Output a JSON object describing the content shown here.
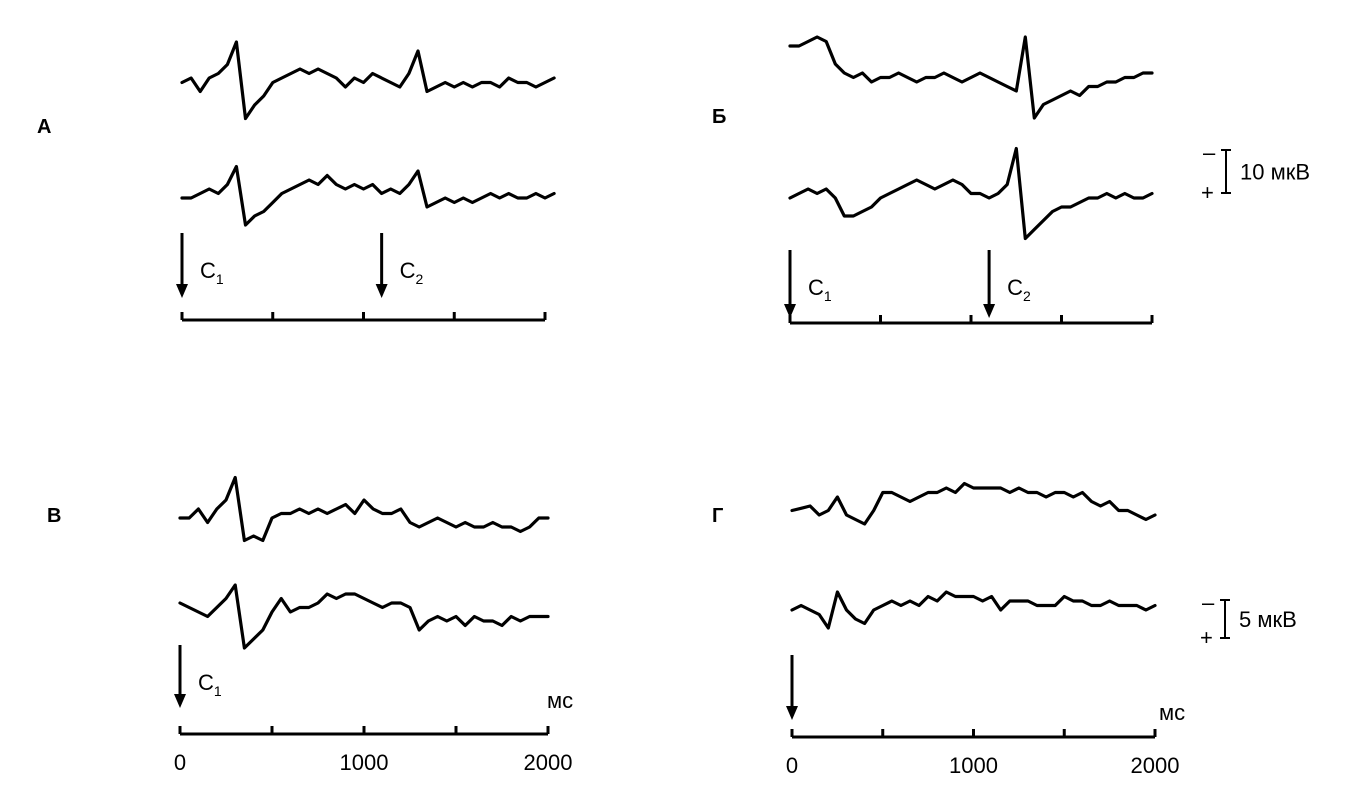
{
  "chart_data": [
    {
      "type": "line",
      "panel_label": "А",
      "x_unit": "",
      "x": [
        0,
        50,
        100,
        150,
        200,
        250,
        300,
        350,
        400,
        450,
        500,
        550,
        600,
        650,
        700,
        750,
        800,
        850,
        900,
        950,
        1000,
        1050,
        1100,
        1150,
        1200,
        1250,
        1300,
        1350,
        1400,
        1450,
        1500,
        1550,
        1600,
        1650,
        1700,
        1750,
        1800,
        1850,
        1900,
        1950,
        2000,
        2050
      ],
      "series": [
        {
          "values": [
            -1,
            0,
            -3,
            0,
            1,
            3,
            8,
            -9,
            -6,
            -4,
            -1,
            0,
            1,
            2,
            1,
            2,
            1,
            0,
            -2,
            0,
            -1,
            1,
            0,
            -1,
            -2,
            1,
            6,
            -3,
            -2,
            -1,
            -2,
            -1,
            -2,
            -1,
            -1,
            -2,
            0,
            -1,
            -1,
            -2,
            -1,
            0
          ]
        },
        {
          "values": [
            0,
            0,
            1,
            2,
            1,
            3,
            7,
            -6,
            -4,
            -3,
            -1,
            1,
            2,
            3,
            4,
            3,
            5,
            3,
            2,
            3,
            2,
            3,
            1,
            2,
            1,
            3,
            6,
            -2,
            -1,
            0,
            -1,
            0,
            -1,
            0,
            1,
            0,
            1,
            0,
            0,
            1,
            0,
            1
          ]
        }
      ],
      "markers": [
        {
          "label": "С",
          "sub": "1",
          "x": 0
        },
        {
          "label": "С",
          "sub": "2",
          "x": 1100
        }
      ],
      "xlim": [
        0,
        2000
      ],
      "ticks": [
        0,
        500,
        1000,
        1500,
        2000
      ],
      "tick_labels": []
    },
    {
      "type": "line",
      "panel_label": "Б",
      "x_unit": "",
      "x": [
        0,
        50,
        100,
        150,
        200,
        250,
        300,
        350,
        400,
        450,
        500,
        550,
        600,
        650,
        700,
        750,
        800,
        850,
        900,
        950,
        1000,
        1050,
        1100,
        1150,
        1200,
        1250,
        1300,
        1350,
        1400,
        1450,
        1500,
        1550,
        1600,
        1650,
        1700,
        1750,
        1800,
        1850,
        1900,
        1950,
        2000
      ],
      "series": [
        {
          "values": [
            8,
            8,
            9,
            10,
            9,
            4,
            2,
            1,
            2,
            0,
            1,
            1,
            2,
            1,
            0,
            1,
            1,
            2,
            1,
            0,
            1,
            2,
            1,
            0,
            -1,
            -2,
            10,
            -8,
            -5,
            -4,
            -3,
            -2,
            -3,
            -1,
            -1,
            0,
            0,
            1,
            1,
            2,
            2
          ]
        },
        {
          "values": [
            0,
            1,
            2,
            1,
            2,
            0,
            -4,
            -4,
            -3,
            -2,
            0,
            1,
            2,
            3,
            4,
            3,
            2,
            3,
            4,
            3,
            1,
            1,
            0,
            1,
            3,
            11,
            -9,
            -7,
            -5,
            -3,
            -2,
            -2,
            -1,
            0,
            0,
            1,
            0,
            1,
            0,
            0,
            1
          ]
        }
      ],
      "markers": [
        {
          "label": "С",
          "sub": "1",
          "x": 0
        },
        {
          "label": "С",
          "sub": "2",
          "x": 1100
        }
      ],
      "xlim": [
        0,
        2000
      ],
      "ticks": [
        0,
        500,
        1000,
        1500,
        2000
      ],
      "tick_labels": [],
      "scale_bar": {
        "label": "10 мкВ",
        "neg": "–",
        "pos": "+"
      }
    },
    {
      "type": "line",
      "panel_label": "В",
      "x_unit": "мс",
      "x": [
        0,
        50,
        100,
        150,
        200,
        250,
        300,
        350,
        400,
        450,
        500,
        550,
        600,
        650,
        700,
        750,
        800,
        850,
        900,
        950,
        1000,
        1050,
        1100,
        1150,
        1200,
        1250,
        1300,
        1350,
        1400,
        1450,
        1500,
        1550,
        1600,
        1650,
        1700,
        1750,
        1800,
        1850,
        1900,
        1950,
        2000
      ],
      "series": [
        {
          "values": [
            0,
            0,
            2,
            -1,
            2,
            4,
            9,
            -5,
            -4,
            -5,
            0,
            1,
            1,
            2,
            1,
            2,
            1,
            2,
            3,
            1,
            4,
            2,
            1,
            1,
            2,
            -1,
            -2,
            -1,
            0,
            -1,
            -2,
            -1,
            -2,
            -2,
            -1,
            -2,
            -2,
            -3,
            -2,
            0,
            0
          ]
        },
        {
          "values": [
            2,
            1,
            0,
            -1,
            1,
            3,
            6,
            -8,
            -6,
            -4,
            0,
            3,
            0,
            1,
            1,
            2,
            4,
            3,
            4,
            4,
            3,
            2,
            1,
            2,
            2,
            1,
            -4,
            -2,
            -1,
            -2,
            -1,
            -3,
            -1,
            -2,
            -2,
            -3,
            -1,
            -2,
            -1,
            -1,
            -1
          ]
        }
      ],
      "markers": [
        {
          "label": "С",
          "sub": "1",
          "x": 0
        }
      ],
      "xlim": [
        0,
        2000
      ],
      "ticks": [
        0,
        500,
        1000,
        1500,
        2000
      ],
      "tick_labels": [
        "0",
        "1000",
        "2000"
      ]
    },
    {
      "type": "line",
      "panel_label": "Г",
      "x_unit": "мс",
      "x": [
        0,
        50,
        100,
        150,
        200,
        250,
        300,
        350,
        400,
        450,
        500,
        550,
        600,
        650,
        700,
        750,
        800,
        850,
        900,
        950,
        1000,
        1050,
        1100,
        1150,
        1200,
        1250,
        1300,
        1350,
        1400,
        1450,
        1500,
        1550,
        1600,
        1650,
        1700,
        1750,
        1800,
        1850,
        1900,
        1950,
        2000
      ],
      "series": [
        {
          "values": [
            1,
            1.5,
            2,
            0,
            1,
            4,
            0,
            -1,
            -2,
            1,
            5,
            5,
            4,
            3,
            4,
            5,
            5,
            6,
            5,
            7,
            6,
            6,
            6,
            6,
            5,
            6,
            5,
            5,
            4,
            5,
            5,
            4,
            5,
            3,
            2,
            3,
            1,
            1,
            0,
            -1,
            0
          ]
        },
        {
          "values": [
            0,
            1,
            0,
            -1,
            -4,
            4,
            0,
            -2,
            -3,
            0,
            1,
            2,
            1,
            2,
            1,
            3,
            2,
            4,
            3,
            3,
            3,
            2,
            3,
            0,
            2,
            2,
            2,
            1,
            1,
            1,
            3,
            2,
            2,
            1,
            1,
            2,
            1,
            1,
            1,
            0,
            1
          ]
        }
      ],
      "markers": [
        {
          "label": "",
          "sub": "",
          "x": 0
        }
      ],
      "xlim": [
        0,
        2000
      ],
      "ticks": [
        0,
        500,
        1000,
        1500,
        2000
      ],
      "tick_labels": [
        "0",
        "1000",
        "2000"
      ],
      "scale_bar": {
        "label": "5 мкВ",
        "neg": "–",
        "pos": "+"
      }
    }
  ]
}
